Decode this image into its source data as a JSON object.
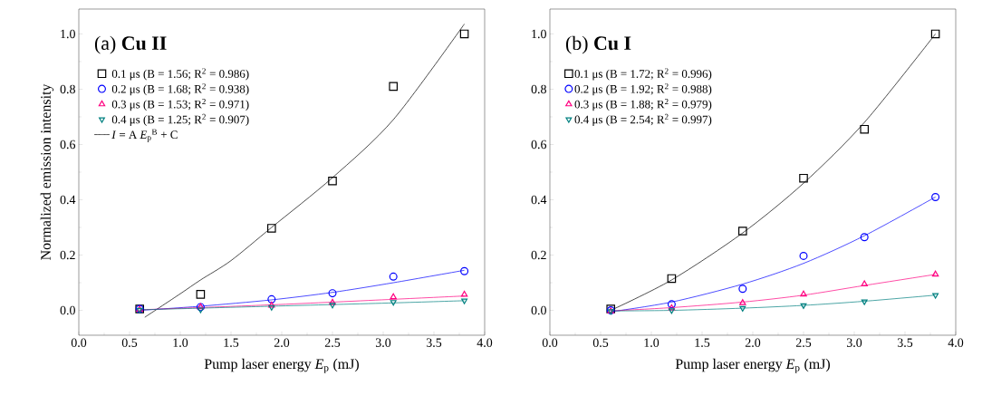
{
  "chart_data": [
    {
      "type": "scatter",
      "title": "(a)   **Cu II**",
      "xlabel": "Pump laser energy *E*$_{p}$ (mJ)",
      "ylabel": "Normalized emission intensity",
      "xlim": [
        0,
        4.0
      ],
      "ylim": [
        -0.09,
        1.09
      ],
      "xticks": [
        {
          "value": 0,
          "label": "0.0"
        },
        {
          "value": 0.5,
          "label": "0.5"
        },
        {
          "value": 1,
          "label": "1.0"
        },
        {
          "value": 1.5,
          "label": "1.5"
        },
        {
          "value": 2,
          "label": "2.0"
        },
        {
          "value": 2.5,
          "label": "2.5"
        },
        {
          "value": 3,
          "label": "3.0"
        },
        {
          "value": 3.5,
          "label": "3.5"
        },
        {
          "value": 4,
          "label": "4.0"
        }
      ],
      "yticks": [
        {
          "value": 0,
          "label": "0.0"
        },
        {
          "value": 0.2,
          "label": "0.2"
        },
        {
          "value": 0.4,
          "label": "0.4"
        },
        {
          "value": 0.6,
          "label": "0.6"
        },
        {
          "value": 0.8,
          "label": "0.8"
        },
        {
          "value": 1,
          "label": "1.0"
        }
      ],
      "legend": "top left",
      "grid": false,
      "x": [
        0.6,
        1.2,
        1.9,
        2.5,
        3.1,
        3.8
      ],
      "series": [
        {
          "name": "0.1 μs  (B = 1.56; R$^{2}$ = 0.986)",
          "color": "#000000",
          "marker": "square",
          "values": [
            0.005,
            0.058,
            0.297,
            0.468,
            0.81,
            1.0
          ]
        },
        {
          "name": "0.2 μs  (B = 1.68; R$^{2}$ = 0.938)",
          "color": "#0000ff",
          "marker": "circle",
          "values": [
            0.005,
            0.012,
            0.04,
            0.062,
            0.122,
            0.142
          ]
        },
        {
          "name": "0.3 μs  (B = 1.53; R$^{2}$ = 0.971)",
          "color": "#ff0080",
          "marker": "triangle",
          "values": [
            0.003,
            0.012,
            0.018,
            0.028,
            0.048,
            0.057
          ]
        },
        {
          "name": "0.4 μs  (B = 1.25; R$^{2}$ = 0.907)",
          "color": "#008080",
          "marker": "triangle-down",
          "values": [
            0.002,
            0.003,
            0.012,
            0.02,
            0.03,
            0.035
          ]
        },
        {
          "name": "*I* = A *E*$_{p}$$^{B}$ + C",
          "type": "line",
          "color": "#000000",
          "marker": "none",
          "line_style": "solid",
          "x": [
            0.65,
            1.0,
            1.2,
            1.5,
            1.9,
            2.5,
            3.1,
            3.8
          ],
          "values": [
            -0.025,
            0.06,
            0.11,
            0.18,
            0.3,
            0.48,
            0.69,
            1.036
          ]
        },
        {
          "type": "line",
          "color": "#0000ff",
          "marker": "none",
          "line_style": "solid",
          "x": [
            0.6,
            1.2,
            1.9,
            2.5,
            3.1,
            3.8
          ],
          "values": [
            0.0,
            0.015,
            0.038,
            0.065,
            0.1,
            0.145
          ]
        },
        {
          "type": "line",
          "color": "#ff0080",
          "marker": "none",
          "line_style": "solid",
          "x": [
            0.6,
            1.9,
            3.1,
            3.8
          ],
          "values": [
            0.002,
            0.02,
            0.04,
            0.052
          ]
        },
        {
          "type": "line",
          "color": "#008080",
          "marker": "none",
          "line_style": "solid",
          "x": [
            0.6,
            1.9,
            3.1,
            3.8
          ],
          "values": [
            0.002,
            0.015,
            0.027,
            0.035
          ]
        }
      ]
    },
    {
      "type": "scatter",
      "title": "(b)   **Cu I**",
      "xlabel": "Pump laser energy *E*$_{p}$ (mJ)",
      "xlim": [
        0,
        4.0
      ],
      "ylim": [
        -0.09,
        1.09
      ],
      "xticks": [
        {
          "value": 0,
          "label": "0.0"
        },
        {
          "value": 0.5,
          "label": "0.5"
        },
        {
          "value": 1,
          "label": "1.0"
        },
        {
          "value": 1.5,
          "label": "1.5"
        },
        {
          "value": 2,
          "label": "2.0"
        },
        {
          "value": 2.5,
          "label": "2.5"
        },
        {
          "value": 3,
          "label": "3.0"
        },
        {
          "value": 3.5,
          "label": "3.5"
        },
        {
          "value": 4,
          "label": "4.0"
        }
      ],
      "yticks": [
        {
          "value": 0,
          "label": "0.0"
        },
        {
          "value": 0.2,
          "label": "0.2"
        },
        {
          "value": 0.4,
          "label": "0.4"
        },
        {
          "value": 0.6,
          "label": "0.6"
        },
        {
          "value": 0.8,
          "label": "0.8"
        },
        {
          "value": 1,
          "label": "1.0"
        }
      ],
      "legend": "top left",
      "grid": false,
      "x": [
        0.6,
        1.2,
        1.9,
        2.5,
        3.1,
        3.8
      ],
      "series": [
        {
          "name": "0.1 μs  (B = 1.72; R$^{2}$ = 0.996)",
          "color": "#000000",
          "marker": "square",
          "values": [
            0.005,
            0.115,
            0.287,
            0.478,
            0.655,
            1.0
          ]
        },
        {
          "name": "0.2 μs  (B = 1.92; R$^{2}$ = 0.988)",
          "color": "#0000ff",
          "marker": "circle",
          "values": [
            0.0,
            0.022,
            0.078,
            0.197,
            0.265,
            0.41
          ]
        },
        {
          "name": "0.3 μs  (B = 1.88; R$^{2}$ = 0.979)",
          "color": "#ff0080",
          "marker": "triangle",
          "values": [
            -0.003,
            0.008,
            0.027,
            0.058,
            0.095,
            0.13
          ]
        },
        {
          "name": "0.4 μs  (B = 2.54; R$^{2}$ = 0.997)",
          "color": "#008080",
          "marker": "triangle-down",
          "values": [
            -0.003,
            0.0,
            0.008,
            0.018,
            0.032,
            0.055
          ]
        },
        {
          "type": "line",
          "color": "#000000",
          "marker": "none",
          "line_style": "solid",
          "x": [
            0.6,
            1.2,
            1.9,
            2.5,
            3.1,
            3.8
          ],
          "values": [
            0.0,
            0.11,
            0.28,
            0.46,
            0.68,
            1.0
          ]
        },
        {
          "type": "line",
          "color": "#0000ff",
          "marker": "none",
          "line_style": "solid",
          "x": [
            0.6,
            1.2,
            1.9,
            2.5,
            3.1,
            3.8
          ],
          "values": [
            -0.005,
            0.03,
            0.095,
            0.17,
            0.27,
            0.41
          ]
        },
        {
          "type": "line",
          "color": "#ff0080",
          "marker": "none",
          "line_style": "solid",
          "x": [
            0.6,
            1.2,
            1.9,
            2.5,
            3.1,
            3.8
          ],
          "values": [
            -0.002,
            0.01,
            0.03,
            0.055,
            0.09,
            0.13
          ]
        },
        {
          "type": "line",
          "color": "#008080",
          "marker": "none",
          "line_style": "solid",
          "x": [
            0.6,
            1.2,
            1.9,
            2.5,
            3.1,
            3.8
          ],
          "values": [
            -0.002,
            0.0,
            0.008,
            0.018,
            0.033,
            0.055
          ]
        }
      ]
    }
  ]
}
